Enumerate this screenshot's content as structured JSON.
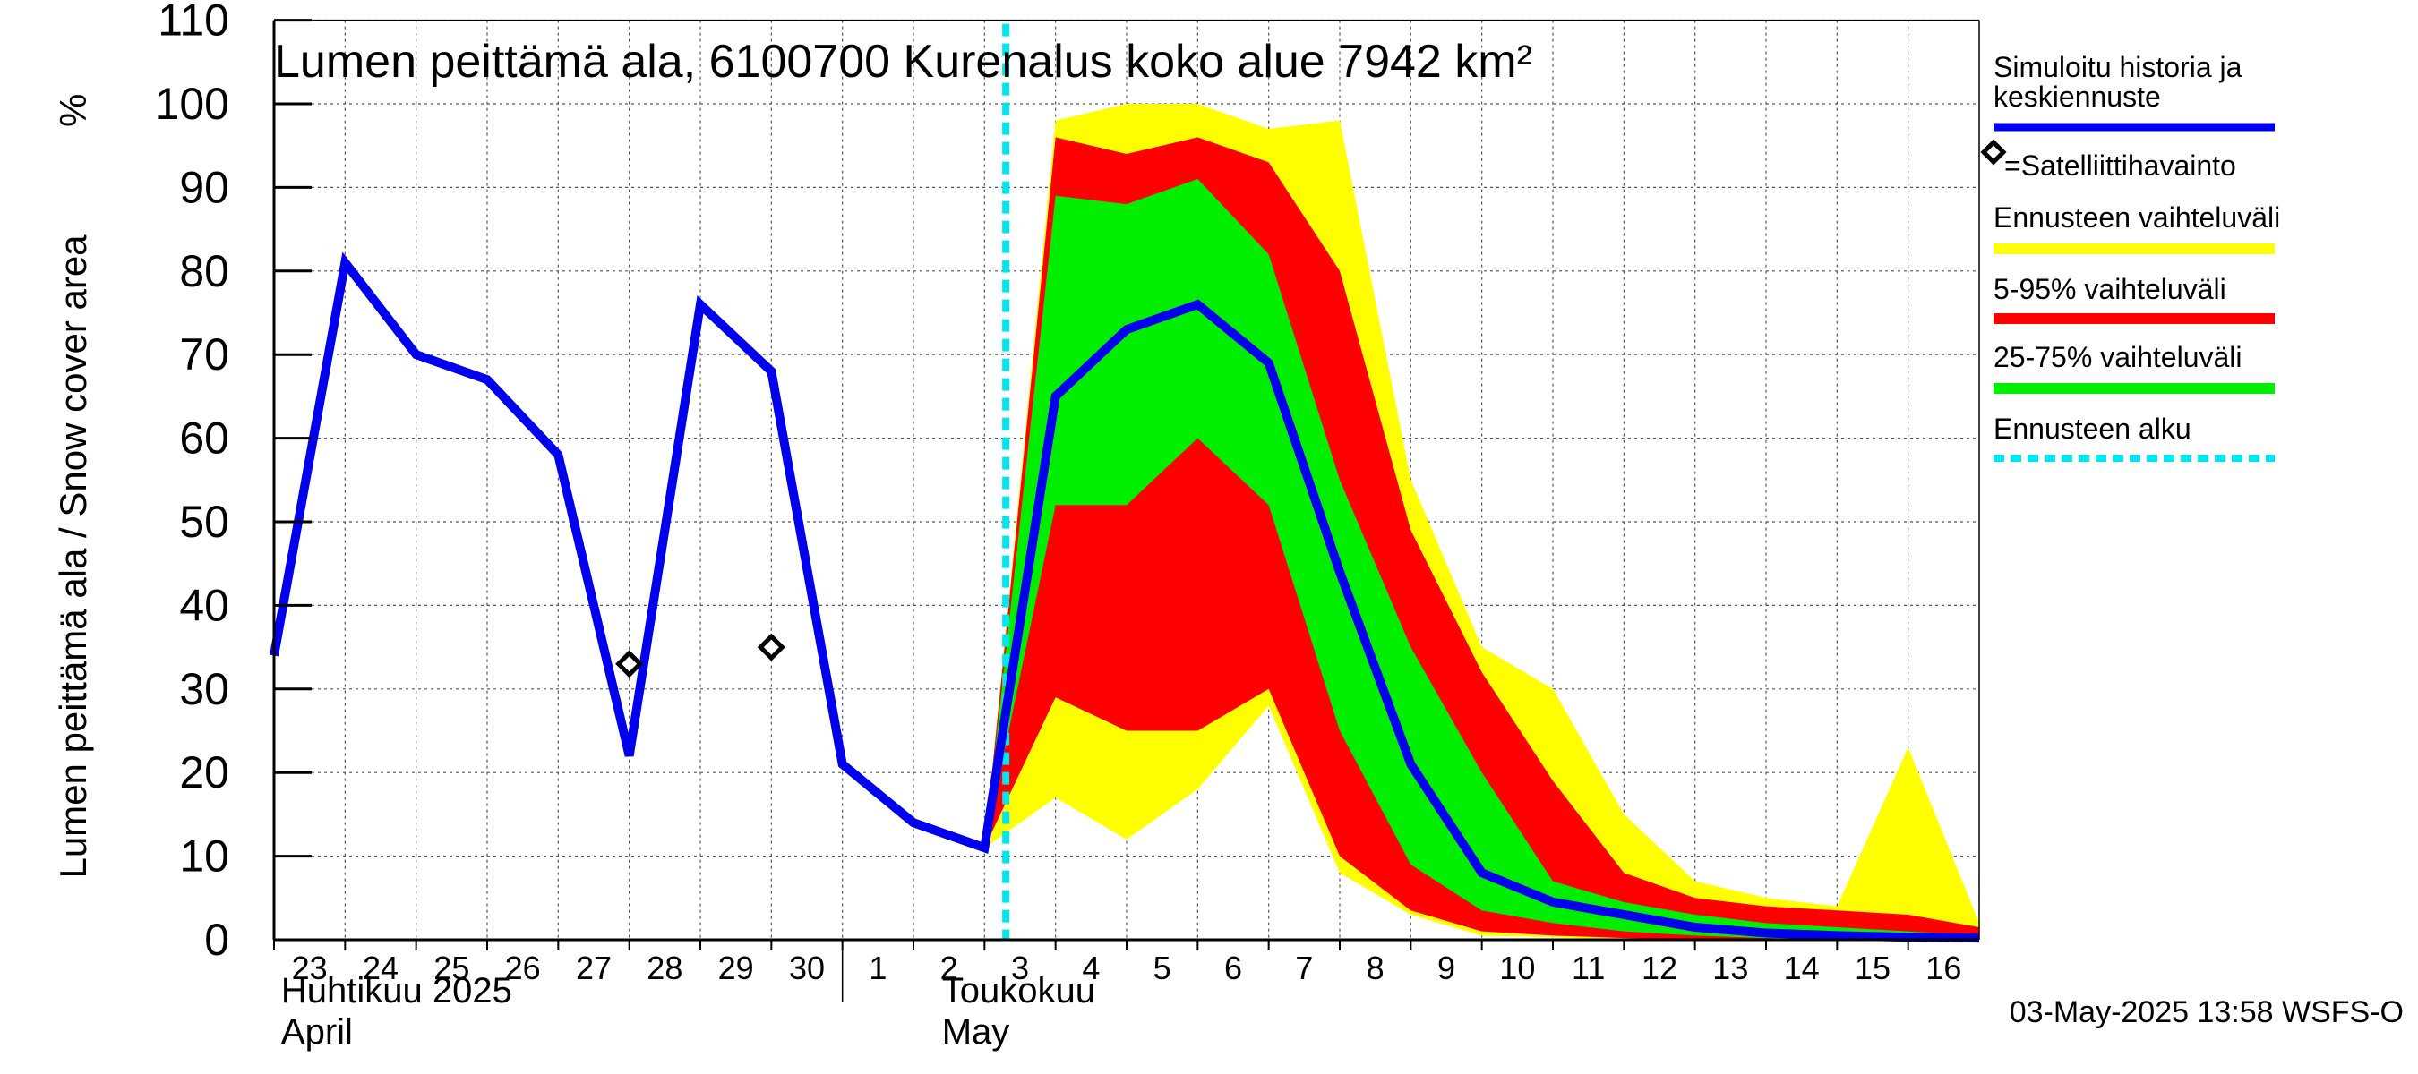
{
  "chart_data": {
    "type": "area",
    "title": "Lumen peittämä ala, 6100700 Kurenalus koko alue 7942 km²",
    "ylabel": "Lumen peittämä ala / Snow cover area",
    "yunit": "%",
    "ylim": [
      0,
      110
    ],
    "yticks": [
      0,
      10,
      20,
      30,
      40,
      50,
      60,
      70,
      80,
      90,
      100,
      110
    ],
    "xlim": [
      22.5,
      46.5
    ],
    "x_day_ticks": [
      {
        "x": 23,
        "label": "23"
      },
      {
        "x": 24,
        "label": "24"
      },
      {
        "x": 25,
        "label": "25"
      },
      {
        "x": 26,
        "label": "26"
      },
      {
        "x": 27,
        "label": "27"
      },
      {
        "x": 28,
        "label": "28"
      },
      {
        "x": 29,
        "label": "29"
      },
      {
        "x": 30,
        "label": "30"
      },
      {
        "x": 31,
        "label": "1"
      },
      {
        "x": 32,
        "label": "2"
      },
      {
        "x": 33,
        "label": "3"
      },
      {
        "x": 34,
        "label": "4"
      },
      {
        "x": 35,
        "label": "5"
      },
      {
        "x": 36,
        "label": "6"
      },
      {
        "x": 37,
        "label": "7"
      },
      {
        "x": 38,
        "label": "8"
      },
      {
        "x": 39,
        "label": "9"
      },
      {
        "x": 40,
        "label": "10"
      },
      {
        "x": 41,
        "label": "11"
      },
      {
        "x": 42,
        "label": "12"
      },
      {
        "x": 43,
        "label": "13"
      },
      {
        "x": 44,
        "label": "14"
      },
      {
        "x": 45,
        "label": "15"
      },
      {
        "x": 46,
        "label": "16"
      }
    ],
    "month_labels": [
      {
        "x": 22.6,
        "fi": "Huhtikuu  2025",
        "en": "April"
      },
      {
        "x": 31.9,
        "fi": "Toukokuu",
        "en": "May"
      }
    ],
    "month_boundary_x": 30.5,
    "forecast_start_x": 32.8,
    "series": [
      {
        "name": "Simuloitu historia ja keskiennuste",
        "color": "#0000ee",
        "x": [
          22.5,
          23.5,
          24.5,
          25.5,
          26.5,
          27.5,
          28.5,
          29.5,
          30.5,
          31.5,
          32.5,
          33.5,
          34.5,
          35.5,
          36.5,
          37.5,
          38.5,
          39.5,
          40.5,
          41.5,
          42.5,
          43.5,
          44.5,
          45.5,
          46.5
        ],
        "values": [
          34,
          81,
          70,
          67,
          58,
          22,
          76,
          68,
          21,
          14,
          11,
          65,
          73,
          76,
          69,
          44,
          21,
          8,
          4.5,
          3,
          1.5,
          0.8,
          0.5,
          0.3,
          0.2
        ]
      }
    ],
    "bands": [
      {
        "name": "Ennusteen vaihteluväli",
        "color": "#ffff00",
        "x": [
          32.5,
          33.5,
          34.5,
          35.5,
          36.5,
          37.5,
          38.5,
          39.5,
          40.5,
          41.5,
          42.5,
          43.5,
          44.5,
          45.5,
          46.5
        ],
        "upper": [
          11,
          98,
          100,
          100,
          97,
          98,
          55,
          35,
          30,
          15,
          7,
          5,
          4,
          23,
          2
        ],
        "lower": [
          11,
          17,
          12,
          18,
          28,
          8,
          3,
          0.5,
          0.3,
          0,
          0,
          0,
          0,
          0,
          0
        ]
      },
      {
        "name": "5-95% vaihteluväli",
        "color": "#ff0000",
        "x": [
          32.5,
          33.5,
          34.5,
          35.5,
          36.5,
          37.5,
          38.5,
          39.5,
          40.5,
          41.5,
          42.5,
          43.5,
          44.5,
          45.5,
          46.5
        ],
        "upper": [
          11,
          96,
          94,
          96,
          93,
          80,
          49,
          32,
          19,
          8,
          5,
          4,
          3.5,
          3,
          1.5
        ],
        "lower": [
          11,
          29,
          25,
          25,
          30,
          10,
          3.5,
          1,
          0.5,
          0.2,
          0,
          0,
          0,
          0,
          0
        ]
      },
      {
        "name": "25-75% vaihteluväli",
        "color": "#00ee00",
        "x": [
          32.5,
          33.5,
          34.5,
          35.5,
          36.5,
          37.5,
          38.5,
          39.5,
          40.5,
          41.5,
          42.5,
          43.5,
          44.5,
          45.5,
          46.5
        ],
        "upper": [
          11,
          89,
          88,
          91,
          82,
          55,
          35,
          20,
          7,
          4.5,
          3,
          2,
          1.5,
          1,
          0.5
        ],
        "lower": [
          11,
          52,
          52,
          60,
          52,
          25,
          9,
          3.5,
          2,
          1,
          0.5,
          0.2,
          0,
          0,
          0
        ]
      }
    ],
    "observations": {
      "name": "Satelliittihavainto",
      "x": [
        27.5,
        29.5
      ],
      "values": [
        33,
        35
      ]
    },
    "legend": {
      "placement": "right",
      "entries": [
        {
          "label": "Simuloitu historia ja keskiennuste",
          "line1": "Simuloitu historia ja",
          "line2": "keskiennuste",
          "style": "line",
          "color": "#0000ee"
        },
        {
          "label": "=Satelliittihavainto",
          "style": "marker",
          "color": "#000000"
        },
        {
          "label": "Ennusteen vaihteluväli",
          "style": "band",
          "color": "#ffff00"
        },
        {
          "label": "5-95% vaihteluväli",
          "style": "band",
          "color": "#ff0000"
        },
        {
          "label": "25-75% vaihteluväli",
          "style": "band",
          "color": "#00ee00"
        },
        {
          "label": "Ennusteen alku",
          "style": "dashed",
          "color": "#00e5ee"
        }
      ]
    },
    "grid": true,
    "footer": "03-May-2025 13:58 WSFS-O"
  }
}
